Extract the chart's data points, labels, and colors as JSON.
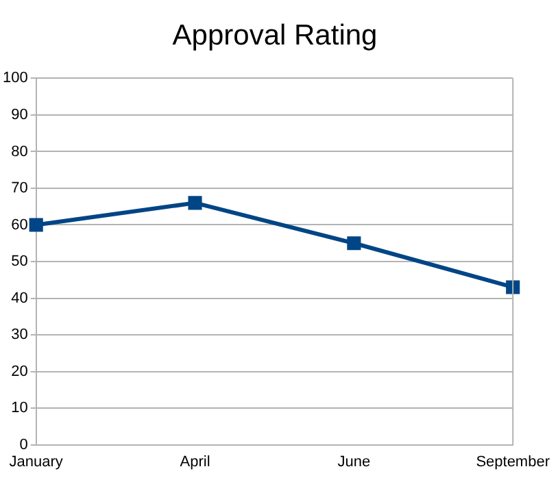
{
  "chart_data": {
    "type": "line",
    "title": "Approval Rating",
    "categories": [
      "January",
      "April",
      "June",
      "September"
    ],
    "series": [
      {
        "color": "#004586",
        "values": [
          60,
          66,
          55,
          43
        ]
      }
    ],
    "ylim": [
      0,
      100
    ],
    "yticks": [
      0,
      10,
      20,
      30,
      40,
      50,
      60,
      70,
      80,
      90,
      100
    ],
    "grid": "y",
    "legend": false,
    "marker": "square",
    "line_style": "solid"
  }
}
